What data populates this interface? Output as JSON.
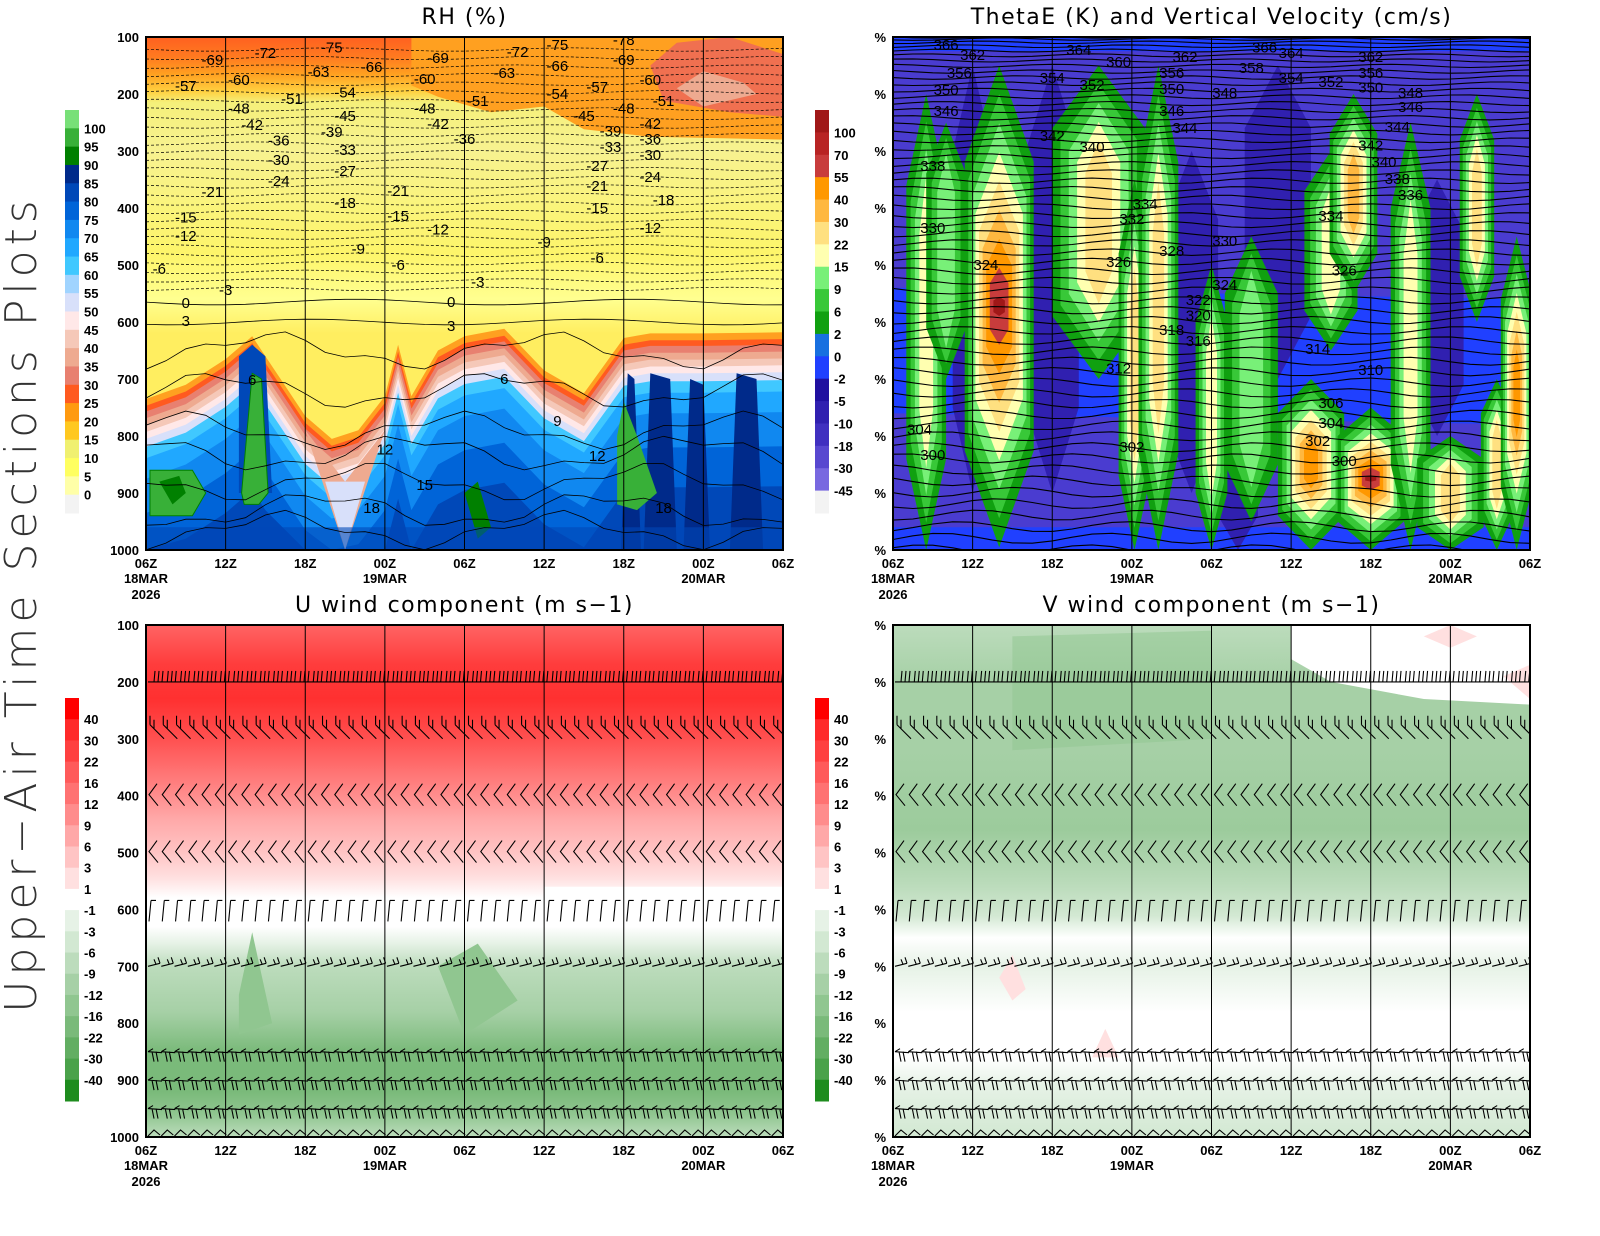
{
  "page": {
    "side_title": "Upper−Air Time Sections Plots"
  },
  "time_axis": {
    "ticks": [
      "06Z",
      "12Z",
      "18Z",
      "00Z",
      "06Z",
      "12Z",
      "18Z",
      "00Z",
      "06Z"
    ],
    "dates": [
      "18MAR",
      "",
      "",
      "19MAR",
      "",
      "",
      "",
      "20MAR",
      ""
    ],
    "year": "2026"
  },
  "chart_data": [
    {
      "type": "heatmap",
      "title": "RH (%)",
      "xlim": [
        "18MAR2026 06Z",
        "20MAR2026 06Z"
      ],
      "ylim": [
        100,
        1000
      ],
      "y_ticks": [
        "100",
        "200",
        "300",
        "400",
        "500",
        "600",
        "700",
        "800",
        "900",
        "1000"
      ],
      "colorbar": {
        "labels": [
          "100",
          "95",
          "90",
          "85",
          "80",
          "75",
          "70",
          "65",
          "60",
          "55",
          "50",
          "45",
          "40",
          "35",
          "30",
          "25",
          "20",
          "15",
          "10",
          "5",
          "0"
        ],
        "colors": [
          "#78e078",
          "#38b038",
          "#008000",
          "#002a8a",
          "#0048b8",
          "#0064d8",
          "#1088f0",
          "#20a8ff",
          "#40c8ff",
          "#a0d4ff",
          "#d8e0fa",
          "#ffe8e8",
          "#f5c8b8",
          "#eeaa90",
          "#e88070",
          "#ff5a20",
          "#ff9a10",
          "#ffc820",
          "#f0f070",
          "#ffff60",
          "#ffffa8",
          "#f3f3f3"
        ]
      },
      "contour_labels": [
        {
          "text": "-69",
          "time": "18/11Z",
          "p": 140
        },
        {
          "text": "-72",
          "time": "18/15Z",
          "p": 128
        },
        {
          "text": "-75",
          "time": "18/20Z",
          "p": 118
        },
        {
          "text": "-66",
          "time": "18/23Z",
          "p": 153
        },
        {
          "text": "-69",
          "time": "19/04Z",
          "p": 137
        },
        {
          "text": "-72",
          "time": "19/10Z",
          "p": 126
        },
        {
          "text": "-75",
          "time": "19/13Z",
          "p": 114
        },
        {
          "text": "-66",
          "time": "19/13Z",
          "p": 151
        },
        {
          "text": "-78",
          "time": "19/18Z",
          "p": 105
        },
        {
          "text": "-69",
          "time": "19/18Z",
          "p": 140
        },
        {
          "text": "-57",
          "time": "18/09Z",
          "p": 186
        },
        {
          "text": "-60",
          "time": "18/13Z",
          "p": 175
        },
        {
          "text": "-63",
          "time": "18/19Z",
          "p": 161
        },
        {
          "text": "-60",
          "time": "19/03Z",
          "p": 174
        },
        {
          "text": "-63",
          "time": "19/09Z",
          "p": 163
        },
        {
          "text": "-60",
          "time": "19/20Z",
          "p": 175
        },
        {
          "text": "-51",
          "time": "18/17Z",
          "p": 209
        },
        {
          "text": "-54",
          "time": "18/21Z",
          "p": 197
        },
        {
          "text": "-51",
          "time": "19/07Z",
          "p": 212
        },
        {
          "text": "-54",
          "time": "19/13Z",
          "p": 200
        },
        {
          "text": "-57",
          "time": "19/16Z",
          "p": 188
        },
        {
          "text": "-51",
          "time": "19/21Z",
          "p": 212
        },
        {
          "text": "-48",
          "time": "18/13Z",
          "p": 225
        },
        {
          "text": "-42",
          "time": "18/14Z",
          "p": 254
        },
        {
          "text": "-45",
          "time": "18/21Z",
          "p": 239
        },
        {
          "text": "-48",
          "time": "19/03Z",
          "p": 225
        },
        {
          "text": "-42",
          "time": "19/04Z",
          "p": 253
        },
        {
          "text": "-45",
          "time": "19/15Z",
          "p": 239
        },
        {
          "text": "-48",
          "time": "19/18Z",
          "p": 225
        },
        {
          "text": "-42",
          "time": "19/20Z",
          "p": 253
        },
        {
          "text": "-36",
          "time": "18/16Z",
          "p": 282
        },
        {
          "text": "-39",
          "time": "18/20Z",
          "p": 267
        },
        {
          "text": "-33",
          "time": "18/21Z",
          "p": 298
        },
        {
          "text": "-36",
          "time": "19/06Z",
          "p": 279
        },
        {
          "text": "-39",
          "time": "19/17Z",
          "p": 265
        },
        {
          "text": "-33",
          "time": "19/17Z",
          "p": 293
        },
        {
          "text": "-36",
          "time": "19/20Z",
          "p": 279
        },
        {
          "text": "-30",
          "time": "18/16Z",
          "p": 316
        },
        {
          "text": "-27",
          "time": "18/21Z",
          "p": 335
        },
        {
          "text": "-24",
          "time": "18/16Z",
          "p": 353
        },
        {
          "text": "-30",
          "time": "19/20Z",
          "p": 307
        },
        {
          "text": "-27",
          "time": "19/16Z",
          "p": 326
        },
        {
          "text": "-24",
          "time": "19/20Z",
          "p": 346
        },
        {
          "text": "-21",
          "time": "18/11Z",
          "p": 372
        },
        {
          "text": "-21",
          "time": "19/01Z",
          "p": 370
        },
        {
          "text": "-18",
          "time": "18/21Z",
          "p": 391
        },
        {
          "text": "-21",
          "time": "19/16Z",
          "p": 361
        },
        {
          "text": "-18",
          "time": "19/21Z",
          "p": 386
        },
        {
          "text": "-15",
          "time": "18/09Z",
          "p": 417
        },
        {
          "text": "-12",
          "time": "18/09Z",
          "p": 449
        },
        {
          "text": "-15",
          "time": "19/01Z",
          "p": 414
        },
        {
          "text": "-12",
          "time": "19/04Z",
          "p": 438
        },
        {
          "text": "-9",
          "time": "19/12Z",
          "p": 460
        },
        {
          "text": "-15",
          "time": "19/16Z",
          "p": 400
        },
        {
          "text": "-12",
          "time": "19/20Z",
          "p": 435
        },
        {
          "text": "-9",
          "time": "18/22Z",
          "p": 472
        },
        {
          "text": "-6",
          "time": "18/07Z",
          "p": 507
        },
        {
          "text": "-6",
          "time": "19/01Z",
          "p": 500
        },
        {
          "text": "-6",
          "time": "19/16Z",
          "p": 488
        },
        {
          "text": "-3",
          "time": "18/12Z",
          "p": 544
        },
        {
          "text": "-3",
          "time": "19/07Z",
          "p": 530
        },
        {
          "text": "0",
          "time": "18/09Z",
          "p": 567
        },
        {
          "text": "3",
          "time": "18/09Z",
          "p": 598
        },
        {
          "text": "0",
          "time": "19/05Z",
          "p": 565
        },
        {
          "text": "3",
          "time": "19/05Z",
          "p": 607
        },
        {
          "text": "6",
          "time": "18/14Z",
          "p": 702
        },
        {
          "text": "6",
          "time": "19/09Z",
          "p": 700
        },
        {
          "text": "9",
          "time": "19/13Z",
          "p": 774
        },
        {
          "text": "12",
          "time": "19/00Z",
          "p": 824
        },
        {
          "text": "12",
          "time": "19/16Z",
          "p": 835
        },
        {
          "text": "15",
          "time": "19/03Z",
          "p": 886
        },
        {
          "text": "18",
          "time": "18/23Z",
          "p": 926
        },
        {
          "text": "18",
          "time": "19/21Z",
          "p": 926
        }
      ]
    },
    {
      "type": "heatmap",
      "title": "ThetaE (K) and Vertical Velocity (cm/s)",
      "xlim": [
        "18MAR2026 06Z",
        "20MAR2026 06Z"
      ],
      "ylim": [
        100,
        1000
      ],
      "y_ticks": [
        "%",
        "%",
        "%",
        "%",
        "%",
        "%",
        "%",
        "%",
        "%",
        "%"
      ],
      "colorbar": {
        "labels": [
          "100",
          "70",
          "55",
          "40",
          "30",
          "22",
          "15",
          "9",
          "6",
          "2",
          "0",
          "-2",
          "-5",
          "-10",
          "-18",
          "-30",
          "-45"
        ],
        "colors": [
          "#a01818",
          "#b82424",
          "#c83c3c",
          "#ff9800",
          "#ffb840",
          "#ffe080",
          "#ffffb0",
          "#78f078",
          "#38c838",
          "#10a010",
          "#1870e0",
          "#2040ff",
          "#2010a0",
          "#3020b0",
          "#4030c0",
          "#5848d0",
          "#7868e0",
          "#f3f3f3"
        ]
      },
      "contour_labels": [
        {
          "text": "366",
          "time": "18/10Z",
          "p": 114
        },
        {
          "text": "362",
          "time": "18/12Z",
          "p": 132
        },
        {
          "text": "356",
          "time": "18/11Z",
          "p": 163
        },
        {
          "text": "350",
          "time": "18/10Z",
          "p": 193
        },
        {
          "text": "346",
          "time": "18/10Z",
          "p": 230
        },
        {
          "text": "364",
          "time": "18/20Z",
          "p": 123
        },
        {
          "text": "360",
          "time": "18/23Z",
          "p": 144
        },
        {
          "text": "354",
          "time": "18/18Z",
          "p": 172
        },
        {
          "text": "352",
          "time": "18/21Z",
          "p": 184
        },
        {
          "text": "362",
          "time": "19/04Z",
          "p": 135
        },
        {
          "text": "356",
          "time": "19/03Z",
          "p": 163
        },
        {
          "text": "350",
          "time": "19/03Z",
          "p": 191
        },
        {
          "text": "348",
          "time": "19/07Z",
          "p": 198
        },
        {
          "text": "346",
          "time": "19/03Z",
          "p": 230
        },
        {
          "text": "344",
          "time": "19/04Z",
          "p": 260
        },
        {
          "text": "358",
          "time": "19/09Z",
          "p": 154
        },
        {
          "text": "366",
          "time": "19/10Z",
          "p": 118
        },
        {
          "text": "364",
          "time": "19/12Z",
          "p": 128
        },
        {
          "text": "354",
          "time": "19/12Z",
          "p": 172
        },
        {
          "text": "352",
          "time": "19/15Z",
          "p": 179
        },
        {
          "text": "362",
          "time": "19/18Z",
          "p": 135
        },
        {
          "text": "356",
          "time": "19/18Z",
          "p": 163
        },
        {
          "text": "350",
          "time": "19/18Z",
          "p": 189
        },
        {
          "text": "348",
          "time": "19/21Z",
          "p": 198
        },
        {
          "text": "346",
          "time": "19/21Z",
          "p": 223
        },
        {
          "text": "344",
          "time": "19/20Z",
          "p": 258
        },
        {
          "text": "342",
          "time": "18/18Z",
          "p": 274
        },
        {
          "text": "340",
          "time": "18/21Z",
          "p": 293
        },
        {
          "text": "342",
          "time": "19/18Z",
          "p": 290
        },
        {
          "text": "340",
          "time": "19/19Z",
          "p": 319
        },
        {
          "text": "338",
          "time": "19/20Z",
          "p": 349
        },
        {
          "text": "336",
          "time": "19/21Z",
          "p": 377
        },
        {
          "text": "338",
          "time": "18/09Z",
          "p": 326
        },
        {
          "text": "334",
          "time": "19/01Z",
          "p": 393
        },
        {
          "text": "332",
          "time": "19/00Z",
          "p": 419
        },
        {
          "text": "330",
          "time": "18/09Z",
          "p": 435
        },
        {
          "text": "334",
          "time": "19/15Z",
          "p": 414
        },
        {
          "text": "330",
          "time": "19/07Z",
          "p": 458
        },
        {
          "text": "328",
          "time": "19/03Z",
          "p": 475
        },
        {
          "text": "326",
          "time": "18/23Z",
          "p": 495
        },
        {
          "text": "326",
          "time": "19/16Z",
          "p": 510
        },
        {
          "text": "324",
          "time": "18/13Z",
          "p": 500
        },
        {
          "text": "324",
          "time": "19/07Z",
          "p": 535
        },
        {
          "text": "322",
          "time": "19/05Z",
          "p": 561
        },
        {
          "text": "320",
          "time": "19/05Z",
          "p": 589
        },
        {
          "text": "318",
          "time": "19/03Z",
          "p": 614
        },
        {
          "text": "316",
          "time": "19/05Z",
          "p": 633
        },
        {
          "text": "314",
          "time": "19/14Z",
          "p": 647
        },
        {
          "text": "312",
          "time": "18/23Z",
          "p": 682
        },
        {
          "text": "310",
          "time": "19/18Z",
          "p": 684
        },
        {
          "text": "306",
          "time": "19/15Z",
          "p": 742
        },
        {
          "text": "304",
          "time": "19/15Z",
          "p": 777
        },
        {
          "text": "302",
          "time": "19/14Z",
          "p": 809
        },
        {
          "text": "300",
          "time": "19/16Z",
          "p": 844
        },
        {
          "text": "302",
          "time": "19/00Z",
          "p": 819
        },
        {
          "text": "304",
          "time": "18/08Z",
          "p": 789
        },
        {
          "text": "300",
          "time": "18/09Z",
          "p": 833
        }
      ]
    },
    {
      "type": "heatmap",
      "title": "U wind component (m s−1)",
      "xlim": [
        "18MAR2026 06Z",
        "20MAR2026 06Z"
      ],
      "ylim": [
        100,
        1000
      ],
      "y_ticks": [
        "100",
        "200",
        "300",
        "400",
        "500",
        "600",
        "700",
        "800",
        "900",
        "1000"
      ],
      "wind_barb_levels": [
        200,
        300,
        400,
        500,
        600,
        700,
        850,
        900,
        950,
        1000
      ],
      "colorbar": {
        "labels": [
          "40",
          "30",
          "22",
          "16",
          "12",
          "9",
          "6",
          "3",
          "1",
          "-1",
          "-3",
          "-6",
          "-9",
          "-12",
          "-16",
          "-22",
          "-30",
          "-40"
        ],
        "colors": [
          "#ff0000",
          "#ff2a2a",
          "#ff4040",
          "#ff5a5a",
          "#ff7272",
          "#ff8c8c",
          "#ffa8a8",
          "#ffc4c4",
          "#ffe0e0",
          "#ffffff",
          "#e6f2e6",
          "#d2e8d2",
          "#bcdcbc",
          "#a6d0a6",
          "#90c690",
          "#7aba7a",
          "#62ae62",
          "#4aa24a",
          "#1e8c1e"
        ]
      }
    },
    {
      "type": "heatmap",
      "title": "V wind component (m s−1)",
      "xlim": [
        "18MAR2026 06Z",
        "20MAR2026 06Z"
      ],
      "ylim": [
        100,
        1000
      ],
      "y_ticks": [
        "%",
        "%",
        "%",
        "%",
        "%",
        "%",
        "%",
        "%",
        "%",
        "%"
      ],
      "wind_barb_levels": [
        200,
        300,
        400,
        500,
        600,
        700,
        850,
        900,
        950,
        1000
      ],
      "colorbar": {
        "labels": [
          "40",
          "30",
          "22",
          "16",
          "12",
          "9",
          "6",
          "3",
          "1",
          "-1",
          "-3",
          "-6",
          "-9",
          "-12",
          "-16",
          "-22",
          "-30",
          "-40"
        ],
        "colors": [
          "#ff0000",
          "#ff2a2a",
          "#ff4040",
          "#ff5a5a",
          "#ff7272",
          "#ff8c8c",
          "#ffa8a8",
          "#ffc4c4",
          "#ffe0e0",
          "#ffffff",
          "#e6f2e6",
          "#d2e8d2",
          "#bcdcbc",
          "#a6d0a6",
          "#90c690",
          "#7aba7a",
          "#62ae62",
          "#4aa24a",
          "#1e8c1e"
        ]
      }
    }
  ]
}
